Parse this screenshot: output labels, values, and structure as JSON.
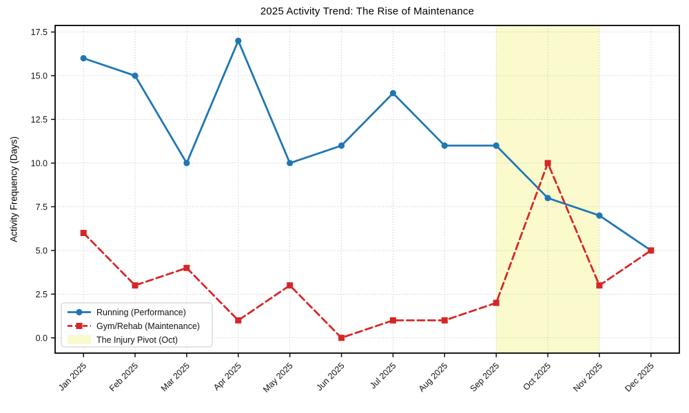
{
  "figure": {
    "title": "2025 Activity Trend: The Rise of Maintenance",
    "ylabel": "Activity Frequency (Days)"
  },
  "chart_data": {
    "type": "line",
    "title": "2025 Activity Trend: The Rise of Maintenance",
    "xlabel": "",
    "ylabel": "Activity Frequency (Days)",
    "categories": [
      "Jan 2025",
      "Feb 2025",
      "Mar 2025",
      "Apr 2025",
      "May 2025",
      "Jun 2025",
      "Jul 2025",
      "Aug 2025",
      "Sep 2025",
      "Oct 2025",
      "Nov 2025",
      "Dec 2025"
    ],
    "series": [
      {
        "name": "Running (Performance)",
        "values": [
          16,
          15,
          10,
          17,
          10,
          11,
          14,
          11,
          11,
          8,
          7,
          5
        ],
        "color": "#1f77b4",
        "line_style": "solid",
        "marker": "circle"
      },
      {
        "name": "Gym/Rehab (Maintenance)",
        "values": [
          6,
          3,
          4,
          1,
          3,
          0,
          1,
          1,
          2,
          10,
          3,
          5
        ],
        "color": "#d62728",
        "line_style": "dashed",
        "marker": "square"
      }
    ],
    "highlight_band": {
      "label": "The Injury Pivot (Oct)",
      "from_category": "Sep 2025",
      "to_category": "Nov 2025",
      "color": "#fafacd"
    },
    "yticks": [
      0,
      2.5,
      5,
      7.5,
      10,
      12.5,
      15,
      17.5
    ],
    "ytick_labels": [
      "0.0",
      "2.5",
      "5.0",
      "7.5",
      "10.0",
      "12.5",
      "15.0",
      "17.5"
    ],
    "ylim": [
      -0.875,
      17.875
    ],
    "grid": true,
    "legend_position": "lower left"
  }
}
